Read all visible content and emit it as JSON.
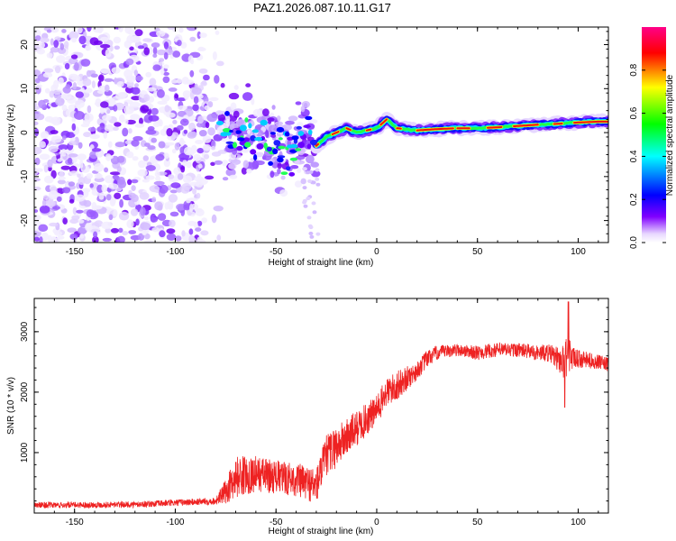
{
  "title": "PAZ1.2026.087.10.11.G17",
  "chart_data": [
    {
      "type": "heatmap",
      "name": "spectrogram",
      "xlabel": "Height of straight line (km)",
      "ylabel": "Frequency (Hz)",
      "xlim": [
        -170,
        115
      ],
      "ylim": [
        -25,
        24
      ],
      "xticks": [
        -150,
        -100,
        -50,
        0,
        50,
        100
      ],
      "yticks": [
        -20,
        -10,
        0,
        10,
        20
      ],
      "colorbar": {
        "label": "Normalized spectral amplitude",
        "ticks": [
          0.0,
          0.2,
          0.4,
          0.6,
          0.8
        ],
        "tick_labels": [
          "0.0",
          "0.2",
          "0.4",
          "0.6",
          "0.8"
        ],
        "range": [
          0,
          1
        ],
        "colormap": [
          "#ffffff",
          "#8000ff",
          "#0000ff",
          "#00ffff",
          "#00ff00",
          "#ffff00",
          "#ff0000",
          "#ff0080"
        ]
      },
      "ridge": {
        "description_points_x": [
          -80,
          -70,
          -60,
          -50,
          -45,
          -40,
          -35,
          -30,
          -25,
          -20,
          -15,
          -10,
          -5,
          0,
          5,
          10,
          20,
          30,
          40,
          50,
          60,
          70,
          80,
          90,
          100,
          110
        ],
        "description_points_y": [
          1,
          0,
          -1,
          -2,
          -4,
          -5,
          0,
          -3,
          -1,
          0,
          1,
          0,
          0.5,
          1,
          3,
          1,
          0.5,
          0.8,
          1,
          1,
          1.2,
          1.5,
          1.8,
          2,
          2.3,
          2.5
        ]
      }
    },
    {
      "type": "line",
      "name": "snr",
      "xlabel": "Height of straight line (km)",
      "ylabel": "SNR (10 * v/v)",
      "xlim": [
        -170,
        115
      ],
      "ylim": [
        0,
        3550
      ],
      "xticks": [
        -150,
        -100,
        -50,
        0,
        50,
        100
      ],
      "yticks": [
        1000,
        2000,
        3000
      ],
      "color": "#ee2222",
      "envelope": {
        "x": [
          -170,
          -120,
          -80,
          -75,
          -70,
          -60,
          -50,
          -40,
          -35,
          -30,
          -25,
          -20,
          -15,
          -10,
          0,
          5,
          10,
          20,
          25,
          30,
          40,
          50,
          60,
          70,
          80,
          85,
          90,
          93,
          95,
          97,
          100,
          110,
          115
        ],
        "mean": [
          130,
          140,
          200,
          350,
          600,
          650,
          600,
          550,
          500,
          450,
          950,
          1100,
          1250,
          1400,
          1700,
          2000,
          2100,
          2350,
          2550,
          2650,
          2700,
          2650,
          2700,
          2700,
          2650,
          2650,
          2550,
          2500,
          2700,
          2550,
          2550,
          2500,
          2450
        ],
        "noise": [
          50,
          50,
          60,
          200,
          350,
          300,
          280,
          280,
          300,
          300,
          350,
          350,
          320,
          300,
          250,
          250,
          250,
          150,
          150,
          120,
          100,
          120,
          120,
          120,
          130,
          150,
          200,
          300,
          400,
          200,
          150,
          120,
          120
        ]
      }
    }
  ]
}
